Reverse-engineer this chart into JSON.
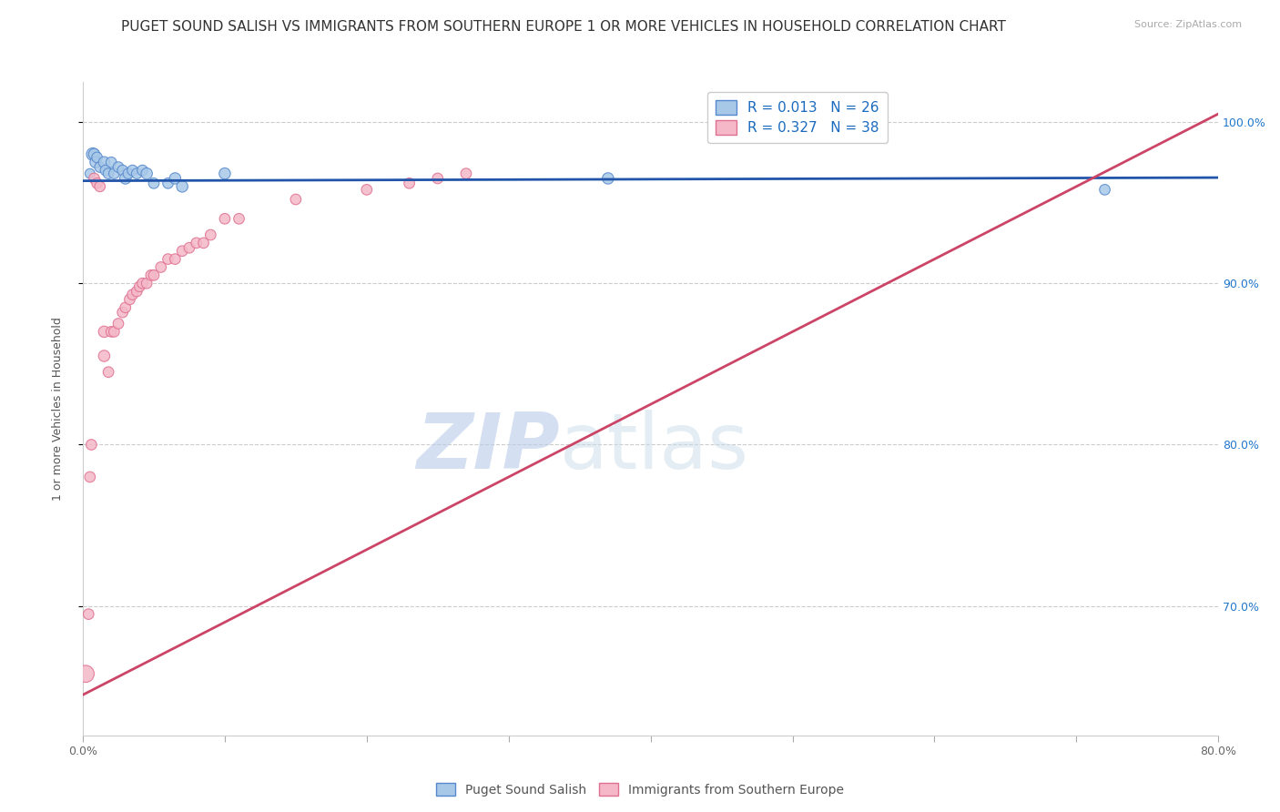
{
  "title": "PUGET SOUND SALISH VS IMMIGRANTS FROM SOUTHERN EUROPE 1 OR MORE VEHICLES IN HOUSEHOLD CORRELATION CHART",
  "source": "Source: ZipAtlas.com",
  "ylabel": "1 or more Vehicles in Household",
  "xlim": [
    0.0,
    0.8
  ],
  "ylim": [
    0.62,
    1.025
  ],
  "yticks": [
    0.7,
    0.8,
    0.9,
    1.0
  ],
  "ytick_labels": [
    "70.0%",
    "80.0%",
    "90.0%",
    "100.0%"
  ],
  "xticks": [
    0.0,
    0.1,
    0.2,
    0.3,
    0.4,
    0.5,
    0.6,
    0.7,
    0.8
  ],
  "series1_color": "#a8c8e8",
  "series2_color": "#f4b8c8",
  "series1_edge": "#5588cc",
  "series2_edge": "#e07090",
  "trendline1_color": "#2255aa",
  "trendline2_color": "#cc4466",
  "trendline1_x": [
    0.0,
    0.8
  ],
  "trendline1_y": [
    0.9635,
    0.9655
  ],
  "trendline2_x": [
    0.0,
    0.8
  ],
  "trendline2_y": [
    0.645,
    1.005
  ],
  "R1": 0.013,
  "N1": 26,
  "R2": 0.327,
  "N2": 38,
  "legend_label1": "Puget Sound Salish",
  "legend_label2": "Immigrants from Southern Europe",
  "legend_color": "#1a6abf",
  "watermark_zip": "ZIP",
  "watermark_atlas": "atlas",
  "watermark_color_zip": "#b8cce8",
  "watermark_color_atlas": "#c8dce8",
  "title_fontsize": 11,
  "axis_label_fontsize": 9,
  "tick_fontsize": 9,
  "series1_x": [
    0.005,
    0.007,
    0.008,
    0.009,
    0.01,
    0.012,
    0.015,
    0.016,
    0.018,
    0.02,
    0.022,
    0.025,
    0.028,
    0.03,
    0.032,
    0.035,
    0.038,
    0.042,
    0.045,
    0.05,
    0.06,
    0.065,
    0.07,
    0.1,
    0.37,
    0.72
  ],
  "series1_y": [
    0.968,
    0.98,
    0.98,
    0.975,
    0.978,
    0.972,
    0.975,
    0.97,
    0.968,
    0.975,
    0.968,
    0.972,
    0.97,
    0.965,
    0.968,
    0.97,
    0.968,
    0.97,
    0.968,
    0.962,
    0.962,
    0.965,
    0.96,
    0.968,
    0.965,
    0.958
  ],
  "series1_sizes": [
    60,
    100,
    80,
    80,
    70,
    70,
    80,
    70,
    70,
    70,
    70,
    70,
    70,
    80,
    70,
    70,
    70,
    70,
    80,
    70,
    70,
    80,
    80,
    80,
    80,
    70
  ],
  "series2_x": [
    0.002,
    0.004,
    0.005,
    0.006,
    0.008,
    0.01,
    0.012,
    0.015,
    0.015,
    0.018,
    0.02,
    0.022,
    0.025,
    0.028,
    0.03,
    0.033,
    0.035,
    0.038,
    0.04,
    0.042,
    0.045,
    0.048,
    0.05,
    0.055,
    0.06,
    0.065,
    0.07,
    0.075,
    0.08,
    0.085,
    0.09,
    0.1,
    0.11,
    0.15,
    0.2,
    0.23,
    0.25,
    0.27
  ],
  "series2_y": [
    0.658,
    0.695,
    0.78,
    0.8,
    0.965,
    0.962,
    0.96,
    0.855,
    0.87,
    0.845,
    0.87,
    0.87,
    0.875,
    0.882,
    0.885,
    0.89,
    0.893,
    0.895,
    0.898,
    0.9,
    0.9,
    0.905,
    0.905,
    0.91,
    0.915,
    0.915,
    0.92,
    0.922,
    0.925,
    0.925,
    0.93,
    0.94,
    0.94,
    0.952,
    0.958,
    0.962,
    0.965,
    0.968
  ],
  "series2_sizes": [
    180,
    70,
    70,
    70,
    70,
    70,
    70,
    80,
    80,
    70,
    70,
    70,
    70,
    70,
    70,
    70,
    70,
    70,
    70,
    70,
    70,
    70,
    70,
    70,
    70,
    70,
    70,
    70,
    70,
    70,
    70,
    70,
    70,
    70,
    70,
    70,
    70,
    70
  ]
}
